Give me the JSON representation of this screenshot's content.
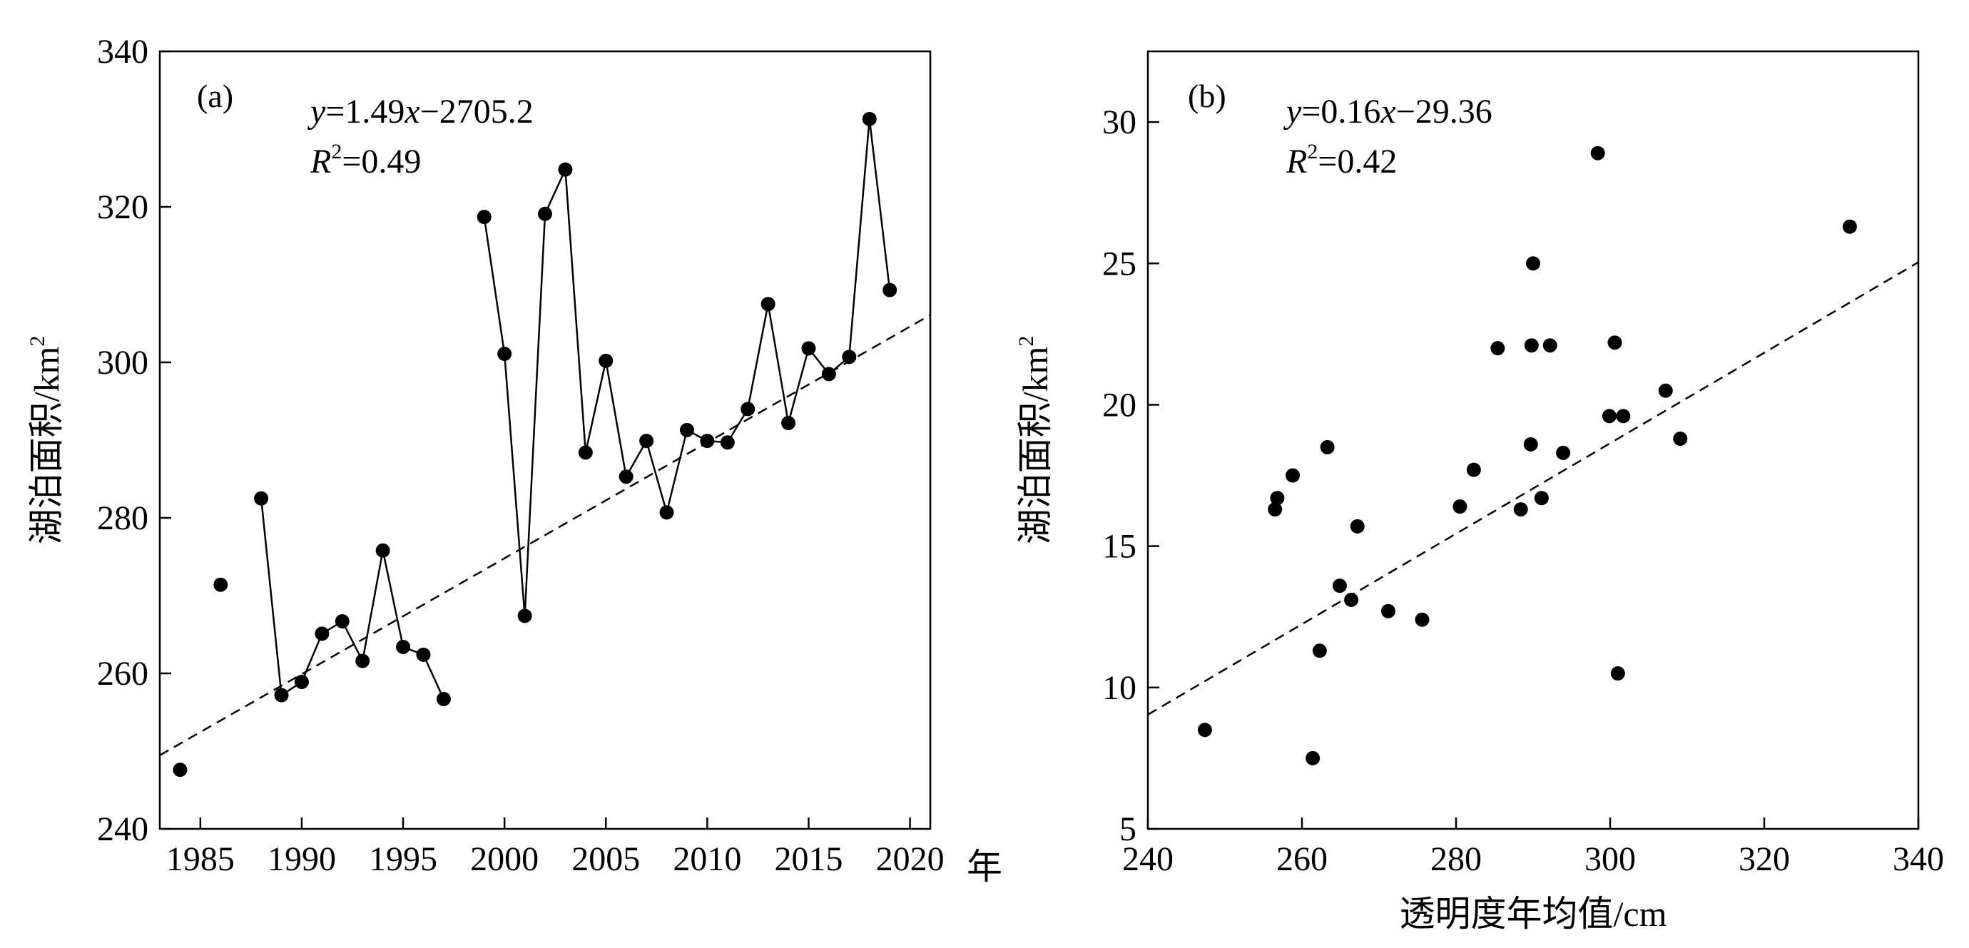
{
  "chart_data": [
    {
      "panel_label": "(a)",
      "type": "line",
      "xlim": [
        1983,
        2021
      ],
      "ylim": [
        240,
        340
      ],
      "xticks": [
        1985,
        1990,
        1995,
        2000,
        2005,
        2010,
        2015,
        2020
      ],
      "yticks": [
        240,
        260,
        280,
        300,
        320,
        340
      ],
      "xunit": "年",
      "ylabel": "湖泊面积/km",
      "ylabel_sup": "2",
      "equation": {
        "y": "y",
        "eq": "=1.49",
        "x": "x",
        "rest": "−2705.2"
      },
      "r2": {
        "r": "R",
        "sup": "2",
        "value": "=0.49"
      },
      "trend": {
        "slope": 1.49,
        "intercept": -2705.2
      },
      "grid": false,
      "series": [
        {
          "points": [
            [
              1984,
              247.6
            ],
            [
              1986,
              271.4
            ],
            [
              1988,
              282.5
            ],
            [
              1989,
              257.2
            ],
            [
              1990,
              258.9
            ],
            [
              1991,
              265.1
            ],
            [
              1992,
              266.7
            ],
            [
              1993,
              261.6
            ],
            [
              1994,
              275.8
            ],
            [
              1995,
              263.4
            ],
            [
              1996,
              262.4
            ],
            [
              1997,
              256.7
            ],
            [
              1999,
              318.7
            ],
            [
              2000,
              301.1
            ],
            [
              2001,
              267.4
            ],
            [
              2002,
              319.1
            ],
            [
              2003,
              324.8
            ],
            [
              2004,
              288.4
            ],
            [
              2005,
              300.2
            ],
            [
              2006,
              285.3
            ],
            [
              2007,
              289.9
            ],
            [
              2008,
              280.7
            ],
            [
              2009,
              291.3
            ],
            [
              2010,
              289.9
            ],
            [
              2011,
              289.7
            ],
            [
              2012,
              294.0
            ],
            [
              2013,
              307.5
            ],
            [
              2014,
              292.2
            ],
            [
              2015,
              301.8
            ],
            [
              2016,
              298.5
            ],
            [
              2017,
              300.7
            ],
            [
              2018,
              331.3
            ],
            [
              2019,
              309.3
            ]
          ],
          "connected_segments": [
            [
              1988,
              1997
            ],
            [
              1999,
              2019
            ]
          ]
        }
      ]
    },
    {
      "panel_label": "(b)",
      "type": "scatter",
      "xlim": [
        240,
        340
      ],
      "ylim": [
        5,
        32.5
      ],
      "xticks": [
        240,
        260,
        280,
        300,
        320,
        340
      ],
      "yticks": [
        5,
        10,
        15,
        20,
        25,
        30
      ],
      "xlabel": "透明度年均值/cm",
      "ylabel": "湖泊面积/km",
      "ylabel_sup": "2",
      "equation": {
        "y": "y",
        "eq": "=0.16",
        "x": "x",
        "rest": "−29.36"
      },
      "r2": {
        "r": "R",
        "sup": "2",
        "value": "=0.42"
      },
      "trend": {
        "slope": 0.16,
        "intercept": -29.36
      },
      "grid": false,
      "series": [
        {
          "points": [
            [
              247.4,
              8.5
            ],
            [
              256.5,
              16.3
            ],
            [
              256.8,
              16.7
            ],
            [
              258.8,
              17.5
            ],
            [
              261.4,
              7.5
            ],
            [
              262.3,
              11.3
            ],
            [
              263.3,
              18.5
            ],
            [
              264.9,
              13.6
            ],
            [
              266.4,
              13.1
            ],
            [
              267.2,
              15.7
            ],
            [
              271.2,
              12.7
            ],
            [
              275.6,
              12.4
            ],
            [
              280.5,
              16.4
            ],
            [
              282.3,
              17.7
            ],
            [
              285.4,
              22.0
            ],
            [
              288.4,
              16.3
            ],
            [
              289.7,
              18.6
            ],
            [
              289.8,
              22.1
            ],
            [
              290.0,
              25.0
            ],
            [
              291.1,
              16.7
            ],
            [
              292.2,
              22.1
            ],
            [
              293.9,
              18.3
            ],
            [
              298.4,
              28.9
            ],
            [
              299.9,
              19.6
            ],
            [
              300.6,
              22.2
            ],
            [
              301.0,
              10.5
            ],
            [
              301.7,
              19.6
            ],
            [
              307.2,
              20.5
            ],
            [
              309.1,
              18.8
            ],
            [
              331.1,
              26.3
            ]
          ]
        }
      ]
    }
  ]
}
